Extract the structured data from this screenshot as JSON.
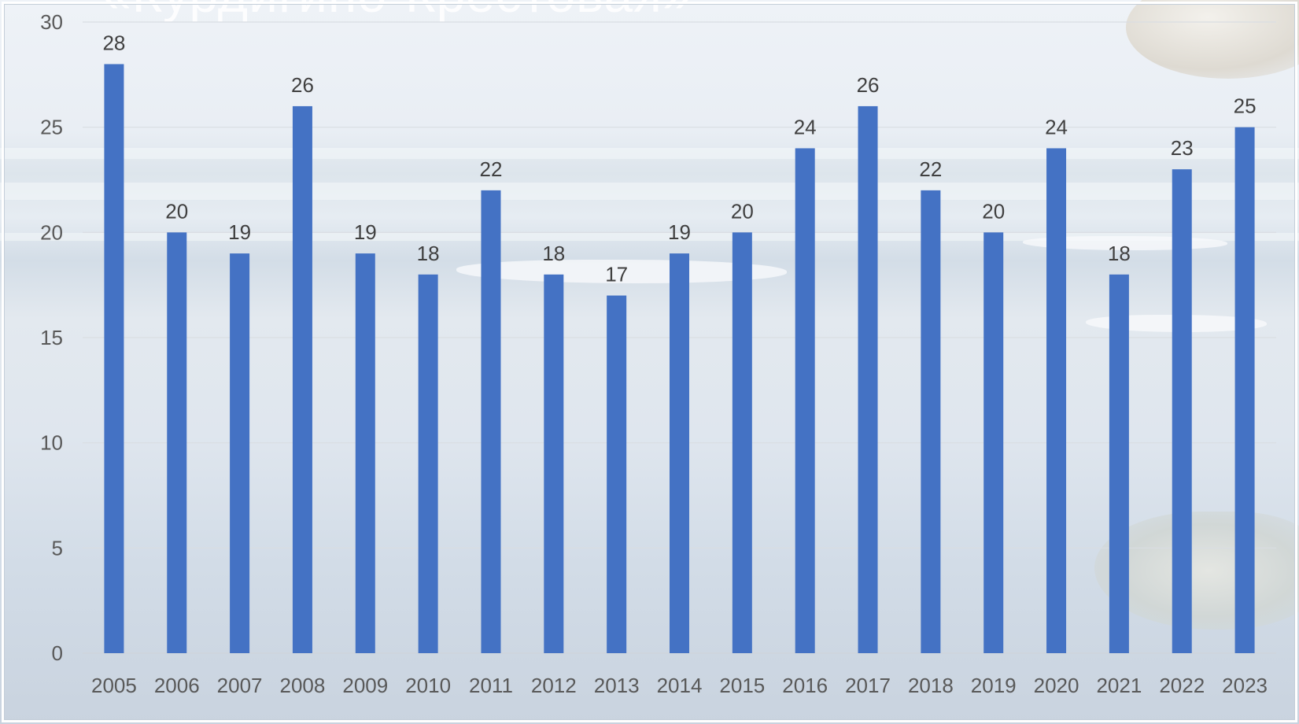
{
  "slide": {
    "title": "«Курдигино-Крестовая»"
  },
  "colors": {
    "bar": "#4472C4",
    "gridline": "#d9dde2",
    "axis": "#d0d4d9"
  },
  "chart_data": {
    "type": "bar",
    "title": "",
    "xlabel": "",
    "ylabel": "",
    "categories": [
      "2005",
      "2006",
      "2007",
      "2008",
      "2009",
      "2010",
      "2011",
      "2012",
      "2013",
      "2014",
      "2015",
      "2016",
      "2017",
      "2018",
      "2019",
      "2020",
      "2021",
      "2022",
      "2023"
    ],
    "series": [
      {
        "values": [
          28,
          20,
          19,
          26,
          19,
          18,
          22,
          18,
          17,
          19,
          20,
          24,
          26,
          22,
          20,
          24,
          18,
          23,
          25
        ]
      }
    ],
    "ylim": [
      0,
      30
    ],
    "yticks": [
      0,
      5,
      10,
      15,
      20,
      25,
      30
    ],
    "grid": true,
    "legend": "none",
    "data_labels": true
  }
}
